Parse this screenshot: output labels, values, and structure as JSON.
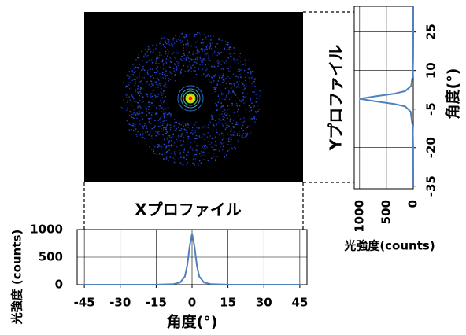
{
  "chart_data": [
    {
      "type": "line",
      "title": "Xプロファイル",
      "xlabel": "角度(°)",
      "ylabel": "光強度 (counts)",
      "x": [
        -45,
        -30,
        -15,
        -8,
        -5,
        -3,
        -2,
        -1,
        0,
        1,
        2,
        3,
        5,
        8,
        15,
        30,
        45
      ],
      "values": [
        0,
        0,
        2,
        10,
        40,
        150,
        350,
        700,
        930,
        700,
        350,
        150,
        40,
        10,
        2,
        0,
        0
      ],
      "color": "#4f81bd",
      "xlim": [
        -48,
        48
      ],
      "xticks": [
        -45,
        -30,
        -15,
        0,
        15,
        30,
        45
      ],
      "ylim": [
        0,
        1000
      ],
      "yticks": [
        0,
        500,
        1000
      ],
      "grid": true,
      "rotated": false
    },
    {
      "type": "line",
      "title": "Yプロファイル",
      "xlabel": "角度(°)",
      "ylabel": "光強度(counts)",
      "x": [
        -35,
        -20,
        -12,
        -6,
        -4,
        -3,
        -2,
        -1,
        0,
        1,
        2,
        4,
        8,
        15,
        25,
        35
      ],
      "values": [
        0,
        2,
        10,
        50,
        150,
        350,
        700,
        1000,
        700,
        350,
        150,
        40,
        10,
        2,
        0,
        0
      ],
      "color": "#4f81bd",
      "xlim": [
        -36,
        35
      ],
      "xticks": [
        -35,
        -20,
        -5,
        10,
        25
      ],
      "ylim": [
        0,
        1100
      ],
      "yticks": [
        0,
        500,
        1000
      ],
      "grid": true,
      "rotated": true
    }
  ]
}
